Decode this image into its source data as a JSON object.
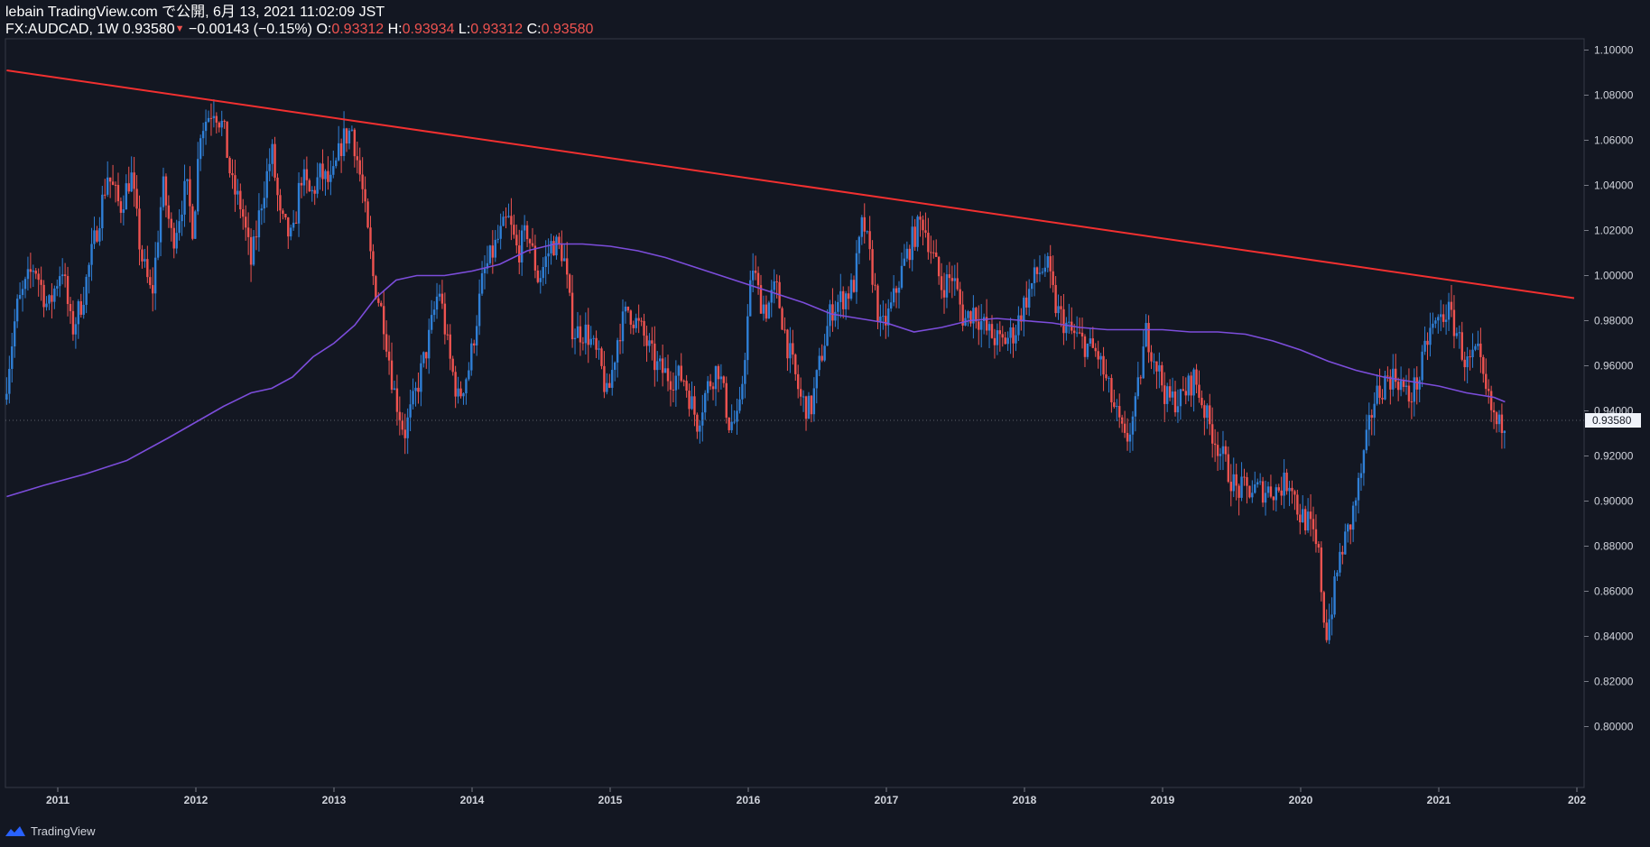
{
  "header": {
    "publisher_line": "lebain TradingView.com で公開, 6月 13, 2021 11:02:09 JST",
    "symbol": "FX:AUDCAD, 1W",
    "last": "0.93580",
    "change_arrow": "▼",
    "change": "−0.00143 (−0.15%)",
    "o_label": "O:",
    "o_value": "0.93312",
    "h_label": "H:",
    "h_value": "0.93934",
    "l_label": "L:",
    "l_value": "0.93312",
    "c_label": "C:",
    "c_value": "0.93580"
  },
  "footer": {
    "brand": "TradingView"
  },
  "colors": {
    "background": "#131722",
    "up": "#2f7fd6",
    "down": "#ef5350",
    "trendline": "#f23030",
    "moving_average": "#7c4ddb",
    "axis_text": "#d1d4dc"
  },
  "chart_data": {
    "type": "candlestick",
    "symbol": "FX:AUDCAD",
    "interval": "1W",
    "y_ticks": [
      "0.80000",
      "0.82000",
      "0.84000",
      "0.86000",
      "0.88000",
      "0.90000",
      "0.92000",
      "0.94000",
      "0.96000",
      "0.98000",
      "1.00000",
      "1.02000",
      "1.04000",
      "1.06000",
      "1.08000",
      "1.10000"
    ],
    "ylim": [
      0.78,
      1.11
    ],
    "x_ticks": [
      "2011",
      "2012",
      "2013",
      "2014",
      "2015",
      "2016",
      "2017",
      "2018",
      "2019",
      "2020",
      "2021",
      "202"
    ],
    "xlim": [
      2010.63,
      2021.98
    ],
    "last_price_label": "0.93580",
    "last_price": 0.9358,
    "price_path": [
      [
        2010.63,
        0.945
      ],
      [
        2010.72,
        0.985
      ],
      [
        2010.85,
        1.005
      ],
      [
        2010.95,
        0.985
      ],
      [
        2011.05,
        1.005
      ],
      [
        2011.12,
        0.975
      ],
      [
        2011.2,
        0.99
      ],
      [
        2011.3,
        1.02
      ],
      [
        2011.38,
        1.045
      ],
      [
        2011.47,
        1.03
      ],
      [
        2011.55,
        1.045
      ],
      [
        2011.62,
        1.01
      ],
      [
        2011.7,
        0.99
      ],
      [
        2011.78,
        1.04
      ],
      [
        2011.85,
        1.015
      ],
      [
        2011.95,
        1.04
      ],
      [
        2012.0,
        1.02
      ],
      [
        2012.05,
        1.065
      ],
      [
        2012.15,
        1.075
      ],
      [
        2012.22,
        1.065
      ],
      [
        2012.28,
        1.04
      ],
      [
        2012.35,
        1.03
      ],
      [
        2012.42,
        1.005
      ],
      [
        2012.5,
        1.035
      ],
      [
        2012.57,
        1.055
      ],
      [
        2012.63,
        1.025
      ],
      [
        2012.72,
        1.015
      ],
      [
        2012.78,
        1.045
      ],
      [
        2012.85,
        1.035
      ],
      [
        2012.92,
        1.045
      ],
      [
        2013.0,
        1.04
      ],
      [
        2013.08,
        1.06
      ],
      [
        2013.15,
        1.065
      ],
      [
        2013.22,
        1.04
      ],
      [
        2013.3,
        1.0
      ],
      [
        2013.38,
        0.98
      ],
      [
        2013.45,
        0.95
      ],
      [
        2013.53,
        0.93
      ],
      [
        2013.6,
        0.945
      ],
      [
        2013.7,
        0.97
      ],
      [
        2013.78,
        0.995
      ],
      [
        2013.85,
        0.965
      ],
      [
        2013.92,
        0.945
      ],
      [
        2014.0,
        0.96
      ],
      [
        2014.1,
        1.0
      ],
      [
        2014.2,
        1.015
      ],
      [
        2014.28,
        1.025
      ],
      [
        2014.35,
        1.01
      ],
      [
        2014.42,
        1.02
      ],
      [
        2014.5,
        0.998
      ],
      [
        2014.6,
        1.015
      ],
      [
        2014.68,
        1.01
      ],
      [
        2014.75,
        0.975
      ],
      [
        2014.85,
        0.975
      ],
      [
        2014.95,
        0.96
      ],
      [
        2015.0,
        0.945
      ],
      [
        2015.08,
        0.975
      ],
      [
        2015.15,
        0.985
      ],
      [
        2015.25,
        0.975
      ],
      [
        2015.35,
        0.96
      ],
      [
        2015.45,
        0.955
      ],
      [
        2015.55,
        0.955
      ],
      [
        2015.65,
        0.935
      ],
      [
        2015.72,
        0.95
      ],
      [
        2015.8,
        0.96
      ],
      [
        2015.88,
        0.935
      ],
      [
        2015.95,
        0.935
      ],
      [
        2016.0,
        0.97
      ],
      [
        2016.05,
        1.005
      ],
      [
        2016.1,
        0.99
      ],
      [
        2016.15,
        0.985
      ],
      [
        2016.22,
        0.995
      ],
      [
        2016.3,
        0.97
      ],
      [
        2016.4,
        0.945
      ],
      [
        2016.47,
        0.94
      ],
      [
        2016.55,
        0.965
      ],
      [
        2016.62,
        0.985
      ],
      [
        2016.7,
        0.99
      ],
      [
        2016.78,
        0.995
      ],
      [
        2016.85,
        1.025
      ],
      [
        2016.92,
        1.0
      ],
      [
        2016.98,
        0.975
      ],
      [
        2017.05,
        0.985
      ],
      [
        2017.12,
        1.0
      ],
      [
        2017.2,
        1.015
      ],
      [
        2017.28,
        1.025
      ],
      [
        2017.35,
        1.01
      ],
      [
        2017.42,
        0.995
      ],
      [
        2017.5,
        1.0
      ],
      [
        2017.58,
        0.98
      ],
      [
        2017.65,
        0.985
      ],
      [
        2017.75,
        0.975
      ],
      [
        2017.85,
        0.97
      ],
      [
        2017.95,
        0.975
      ],
      [
        2018.0,
        0.985
      ],
      [
        2018.1,
        1.0
      ],
      [
        2018.18,
        1.005
      ],
      [
        2018.25,
        0.985
      ],
      [
        2018.35,
        0.975
      ],
      [
        2018.45,
        0.97
      ],
      [
        2018.55,
        0.965
      ],
      [
        2018.65,
        0.945
      ],
      [
        2018.75,
        0.925
      ],
      [
        2018.82,
        0.94
      ],
      [
        2018.9,
        0.975
      ],
      [
        2018.98,
        0.96
      ],
      [
        2019.05,
        0.945
      ],
      [
        2019.15,
        0.945
      ],
      [
        2019.25,
        0.955
      ],
      [
        2019.35,
        0.935
      ],
      [
        2019.45,
        0.92
      ],
      [
        2019.55,
        0.905
      ],
      [
        2019.65,
        0.905
      ],
      [
        2019.75,
        0.905
      ],
      [
        2019.85,
        0.905
      ],
      [
        2019.95,
        0.91
      ],
      [
        2020.0,
        0.895
      ],
      [
        2020.08,
        0.89
      ],
      [
        2020.15,
        0.875
      ],
      [
        2020.2,
        0.84
      ],
      [
        2020.25,
        0.855
      ],
      [
        2020.3,
        0.875
      ],
      [
        2020.38,
        0.89
      ],
      [
        2020.45,
        0.91
      ],
      [
        2020.55,
        0.945
      ],
      [
        2020.65,
        0.955
      ],
      [
        2020.72,
        0.955
      ],
      [
        2020.8,
        0.945
      ],
      [
        2020.88,
        0.955
      ],
      [
        2020.95,
        0.975
      ],
      [
        2021.02,
        0.98
      ],
      [
        2021.08,
        0.985
      ],
      [
        2021.15,
        0.975
      ],
      [
        2021.22,
        0.96
      ],
      [
        2021.3,
        0.965
      ],
      [
        2021.35,
        0.95
      ],
      [
        2021.4,
        0.94
      ],
      [
        2021.45,
        0.932
      ],
      [
        2021.48,
        0.9358
      ]
    ],
    "moving_average_path": [
      [
        2010.63,
        0.902
      ],
      [
        2010.9,
        0.907
      ],
      [
        2011.2,
        0.912
      ],
      [
        2011.5,
        0.918
      ],
      [
        2011.8,
        0.928
      ],
      [
        2012.0,
        0.935
      ],
      [
        2012.2,
        0.942
      ],
      [
        2012.4,
        0.948
      ],
      [
        2012.55,
        0.95
      ],
      [
        2012.7,
        0.955
      ],
      [
        2012.85,
        0.964
      ],
      [
        2013.0,
        0.97
      ],
      [
        2013.15,
        0.978
      ],
      [
        2013.3,
        0.99
      ],
      [
        2013.45,
        0.998
      ],
      [
        2013.6,
        1.0
      ],
      [
        2013.8,
        1.0
      ],
      [
        2014.0,
        1.002
      ],
      [
        2014.2,
        1.005
      ],
      [
        2014.4,
        1.011
      ],
      [
        2014.6,
        1.014
      ],
      [
        2014.8,
        1.014
      ],
      [
        2015.0,
        1.013
      ],
      [
        2015.2,
        1.011
      ],
      [
        2015.4,
        1.008
      ],
      [
        2015.6,
        1.004
      ],
      [
        2015.8,
        1.0
      ],
      [
        2016.0,
        0.996
      ],
      [
        2016.2,
        0.992
      ],
      [
        2016.4,
        0.988
      ],
      [
        2016.6,
        0.983
      ],
      [
        2016.8,
        0.981
      ],
      [
        2017.0,
        0.979
      ],
      [
        2017.2,
        0.975
      ],
      [
        2017.4,
        0.977
      ],
      [
        2017.6,
        0.98
      ],
      [
        2017.8,
        0.981
      ],
      [
        2018.0,
        0.98
      ],
      [
        2018.2,
        0.979
      ],
      [
        2018.4,
        0.977
      ],
      [
        2018.6,
        0.976
      ],
      [
        2018.8,
        0.976
      ],
      [
        2019.0,
        0.976
      ],
      [
        2019.2,
        0.975
      ],
      [
        2019.4,
        0.975
      ],
      [
        2019.6,
        0.974
      ],
      [
        2019.8,
        0.971
      ],
      [
        2020.0,
        0.967
      ],
      [
        2020.2,
        0.962
      ],
      [
        2020.4,
        0.958
      ],
      [
        2020.6,
        0.955
      ],
      [
        2020.8,
        0.953
      ],
      [
        2021.0,
        0.951
      ],
      [
        2021.2,
        0.948
      ],
      [
        2021.4,
        0.946
      ],
      [
        2021.48,
        0.944
      ]
    ],
    "trendline": [
      [
        2010.63,
        1.091
      ],
      [
        2021.98,
        0.99
      ]
    ]
  }
}
